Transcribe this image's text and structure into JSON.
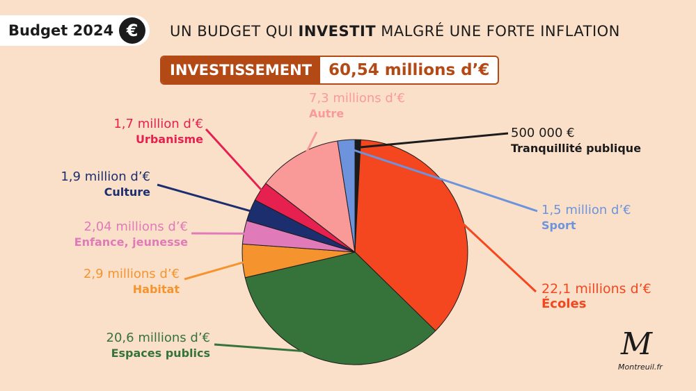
{
  "header": {
    "title": "Budget 2024",
    "euro": "€",
    "headline_pre": "UN BUDGET QUI ",
    "headline_bold": "INVESTIT",
    "headline_post": " MALGRÉ UNE FORTE INFLATION"
  },
  "invest": {
    "label": "INVESTISSEMENT",
    "value": "60,54 millions d’€"
  },
  "logo": {
    "mark": "M",
    "site": "Montreuil.fr"
  },
  "chart_data": {
    "type": "pie",
    "unit": "M€",
    "slices": [
      {
        "name": "Tranquillité publique",
        "value": 0.5,
        "label": "500 000 €",
        "color": "#1b1b1b",
        "label_color": "#1b1b1b",
        "cat_color": "#1b1b1b"
      },
      {
        "name": "Écoles",
        "value": 22.1,
        "label": "22,1 millions d’€",
        "color": "#f4461f",
        "label_color": "#f4461f",
        "cat_color": "#f4461f"
      },
      {
        "name": "Espaces publics",
        "value": 20.6,
        "label": "20,6 millions d’€",
        "color": "#36733a",
        "label_color": "#36733a",
        "cat_color": "#36733a"
      },
      {
        "name": "Habitat",
        "value": 2.9,
        "label": "2,9 millions d’€",
        "color": "#f5942e",
        "label_color": "#f5942e",
        "cat_color": "#f5942e"
      },
      {
        "name": "Enfance, jeunesse",
        "value": 2.04,
        "label": "2,04 millions d’€",
        "color": "#e07ab8",
        "label_color": "#e07ab8",
        "cat_color": "#e07ab8"
      },
      {
        "name": "Culture",
        "value": 1.9,
        "label": "1,9 million d’€",
        "color": "#1c2e6e",
        "label_color": "#1c2e6e",
        "cat_color": "#1c2e6e"
      },
      {
        "name": "Urbanisme",
        "value": 1.7,
        "label": "1,7 million d’€",
        "color": "#e6204f",
        "label_color": "#e6204f",
        "cat_color": "#e6204f"
      },
      {
        "name": "Autre",
        "value": 7.3,
        "label": "7,3 millions d’€",
        "color": "#f99a98",
        "label_color": "#f99a98",
        "cat_color": "#f99a98"
      },
      {
        "name": "Sport",
        "value": 1.5,
        "label": "1,5 million d’€",
        "color": "#6d93dc",
        "label_color": "#6d93dc",
        "cat_color": "#6d93dc"
      }
    ]
  }
}
